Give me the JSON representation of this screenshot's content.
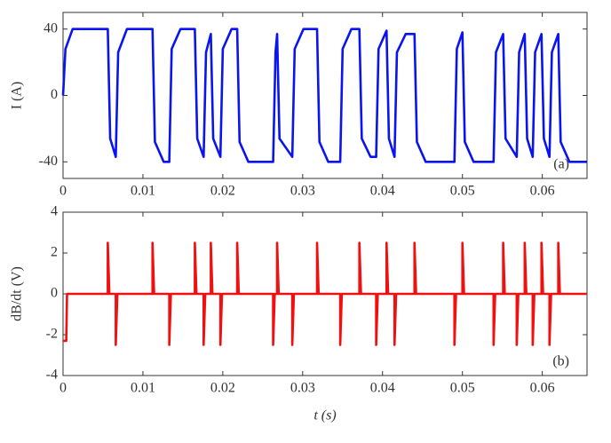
{
  "chart_data": [
    {
      "type": "line",
      "y_label": "I (A)",
      "annotation": "(a)",
      "color": "#0a14f0",
      "xlim": [
        0,
        0.0656
      ],
      "xticks": [
        0,
        0.01,
        0.02,
        0.03,
        0.04,
        0.05,
        0.06
      ],
      "ylim": [
        -50,
        50
      ],
      "yticks": [
        -40,
        0,
        40
      ],
      "x": [
        0,
        0.0003,
        0.0012,
        0.0056,
        0.0059,
        0.0066,
        0.0069,
        0.008,
        0.0112,
        0.0115,
        0.0126,
        0.0133,
        0.0136,
        0.0147,
        0.0165,
        0.0168,
        0.0176,
        0.0179,
        0.0185,
        0.0188,
        0.0197,
        0.02,
        0.0211,
        0.0218,
        0.0221,
        0.0232,
        0.0263,
        0.0266,
        0.0268,
        0.0271,
        0.0287,
        0.029,
        0.0301,
        0.0318,
        0.0321,
        0.0332,
        0.0347,
        0.035,
        0.0361,
        0.0371,
        0.0374,
        0.0385,
        0.0392,
        0.0395,
        0.0405,
        0.0408,
        0.0415,
        0.0418,
        0.0429,
        0.044,
        0.0443,
        0.0454,
        0.049,
        0.0493,
        0.05,
        0.0503,
        0.0514,
        0.0539,
        0.0542,
        0.0551,
        0.0554,
        0.0568,
        0.0571,
        0.0578,
        0.0581,
        0.0588,
        0.0591,
        0.0599,
        0.0602,
        0.0609,
        0.0612,
        0.062,
        0.0623,
        0.0634,
        0.0656
      ],
      "values": [
        0,
        28,
        40,
        40,
        -26,
        -37,
        26,
        40,
        40,
        -28,
        -40,
        -40,
        28,
        40,
        40,
        -26,
        -37,
        26,
        37,
        -26,
        -37,
        28,
        40,
        40,
        -28,
        -40,
        -40,
        26,
        37,
        -26,
        -37,
        28,
        40,
        40,
        -28,
        -40,
        -40,
        28,
        40,
        40,
        -26,
        -37,
        -37,
        28,
        39,
        -26,
        -37,
        26,
        37,
        37,
        -28,
        -40,
        -40,
        28,
        38,
        -28,
        -40,
        -40,
        26,
        37,
        -26,
        -37,
        26,
        37,
        -26,
        -37,
        26,
        37,
        -26,
        -37,
        26,
        37,
        -28,
        -40,
        -40
      ]
    },
    {
      "type": "line",
      "y_label": "dB/dt (V)",
      "x_label": "t (s)",
      "annotation": "(b)",
      "color": "#f01010",
      "xlim": [
        0,
        0.0656
      ],
      "xticks": [
        0,
        0.01,
        0.02,
        0.03,
        0.04,
        0.05,
        0.06
      ],
      "ylim": [
        -4,
        4
      ],
      "yticks": [
        -4,
        -2,
        0,
        2,
        4
      ],
      "x": [
        0,
        0.0004,
        0.0005,
        0.0056,
        0.0056,
        0.0058,
        0.0066,
        0.0066,
        0.0068,
        0.0112,
        0.0112,
        0.0114,
        0.0133,
        0.0133,
        0.0135,
        0.0165,
        0.0165,
        0.0167,
        0.0176,
        0.0176,
        0.0178,
        0.0185,
        0.0185,
        0.0187,
        0.0197,
        0.0197,
        0.0199,
        0.0218,
        0.0218,
        0.022,
        0.0263,
        0.0263,
        0.0265,
        0.0268,
        0.0268,
        0.027,
        0.0287,
        0.0287,
        0.0289,
        0.0318,
        0.0318,
        0.032,
        0.0347,
        0.0347,
        0.0349,
        0.0371,
        0.0371,
        0.0373,
        0.0392,
        0.0392,
        0.0394,
        0.0405,
        0.0405,
        0.0407,
        0.0415,
        0.0415,
        0.0417,
        0.044,
        0.044,
        0.0442,
        0.049,
        0.049,
        0.0492,
        0.05,
        0.05,
        0.0502,
        0.0539,
        0.0539,
        0.0541,
        0.0551,
        0.0551,
        0.0553,
        0.0568,
        0.0568,
        0.057,
        0.0578,
        0.0578,
        0.058,
        0.0588,
        0.0588,
        0.059,
        0.0599,
        0.0599,
        0.0601,
        0.0609,
        0.0609,
        0.0611,
        0.062,
        0.062,
        0.0622,
        0.0656
      ],
      "values": [
        -2.3,
        -2.3,
        0,
        0,
        2.5,
        0,
        0,
        -2.5,
        0,
        0,
        2.5,
        0,
        0,
        -2.5,
        0,
        0,
        2.5,
        0,
        0,
        -2.5,
        0,
        0,
        2.5,
        0,
        0,
        -2.5,
        0,
        0,
        2.5,
        0,
        0,
        -2.5,
        0,
        0,
        2.5,
        0,
        0,
        -2.5,
        0,
        0,
        2.5,
        0,
        0,
        -2.5,
        0,
        0,
        2.5,
        0,
        0,
        -2.5,
        0,
        0,
        2.5,
        0,
        0,
        -2.5,
        0,
        0,
        2.5,
        0,
        0,
        -2.5,
        0,
        0,
        2.5,
        0,
        0,
        -2.5,
        0,
        0,
        2.5,
        0,
        0,
        -2.5,
        0,
        0,
        2.5,
        0,
        0,
        -2.5,
        0,
        0,
        2.5,
        0,
        0,
        -2.5,
        0,
        0,
        2.5,
        0,
        0
      ]
    }
  ]
}
